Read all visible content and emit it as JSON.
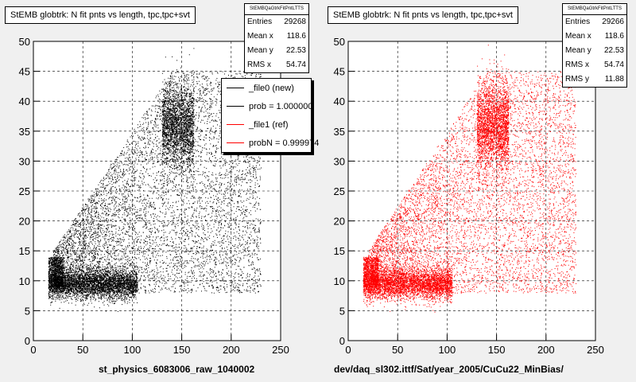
{
  "chart_data": [
    {
      "type": "scatter",
      "title": "StEMB globtrk: N fit pnts vs length, tpc,tpc+svt",
      "xlabel": "st_physics_6083006_raw_1040002",
      "ylabel": "",
      "xlim": [
        0,
        250
      ],
      "ylim": [
        0,
        50
      ],
      "xticks": [
        "0",
        "50",
        "100",
        "150",
        "200",
        "250"
      ],
      "yticks": [
        "0",
        "5",
        "10",
        "15",
        "20",
        "25",
        "30",
        "35",
        "40",
        "45",
        "50"
      ],
      "grid": true,
      "color": "#000000",
      "stats": {
        "name": "StEMBQaGtrkFitPntLTTS",
        "rows": [
          {
            "label": "Entries",
            "value": "29268"
          },
          {
            "label": "Mean x",
            "value": "118.6"
          },
          {
            "label": "Mean y",
            "value": "22.53"
          },
          {
            "label": "RMS x",
            "value": "54.74"
          }
        ]
      },
      "legend": {
        "placement": "top-right",
        "entries": [
          {
            "label": "_file0 (new)",
            "color": "#000000"
          },
          {
            "label": "prob = 1.000000",
            "color": "#000000"
          },
          {
            "label": "_file1 (ref)",
            "color": "#ff0000"
          },
          {
            "label": "probN = 0.999974",
            "color": "#ff0000"
          }
        ]
      }
    },
    {
      "type": "scatter",
      "title": "StEMB globtrk: N fit pnts vs length, tpc,tpc+svt",
      "xlabel": "dev/daq_sl302.ittf/Sat/year_2005/CuCu22_MinBias/",
      "ylabel": "",
      "xlim": [
        0,
        250
      ],
      "ylim": [
        0,
        50
      ],
      "xticks": [
        "0",
        "50",
        "100",
        "150",
        "200",
        "250"
      ],
      "yticks": [
        "0",
        "5",
        "10",
        "15",
        "20",
        "25",
        "30",
        "35",
        "40",
        "45",
        "50"
      ],
      "grid": true,
      "color": "#ff0000",
      "stats": {
        "name": "StEMBQaGtrkFitPntLTTS",
        "rows": [
          {
            "label": "Entries",
            "value": "29266"
          },
          {
            "label": "Mean x",
            "value": "118.6"
          },
          {
            "label": "Mean y",
            "value": "22.53"
          },
          {
            "label": "RMS x",
            "value": "54.74"
          },
          {
            "label": "RMS y",
            "value": "11.88"
          }
        ]
      }
    }
  ]
}
